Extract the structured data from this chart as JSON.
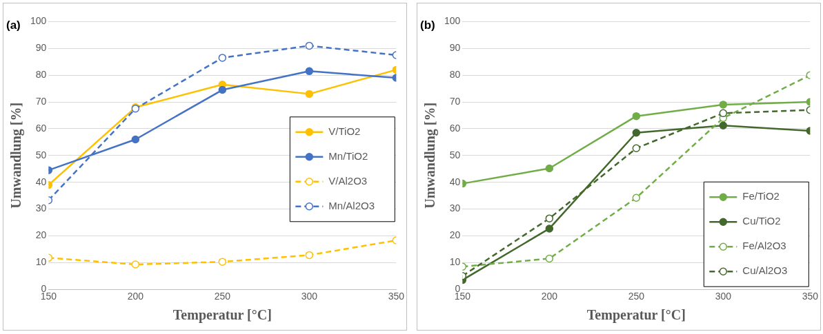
{
  "chart_data": [
    {
      "type": "line",
      "title": "(a)",
      "xlabel": "Temperatur [°C]",
      "ylabel": "Umwandlung [%]",
      "x": [
        150,
        200,
        250,
        300,
        350
      ],
      "xlim": [
        150,
        350
      ],
      "xticks": [
        150,
        200,
        250,
        300,
        350
      ],
      "ylim": [
        0,
        100
      ],
      "yticks": [
        0,
        10,
        20,
        30,
        40,
        50,
        60,
        70,
        80,
        90,
        100
      ],
      "grid": "y",
      "legend": "right",
      "marker": "circle",
      "series": [
        {
          "name": "V/TiO2",
          "color": "#ffc000",
          "line_style": "solid",
          "values": [
            39,
            68,
            76.5,
            73,
            82
          ]
        },
        {
          "name": "Mn/TiO2",
          "color": "#4472c4",
          "line_style": "solid",
          "values": [
            44.5,
            56,
            74.5,
            81.5,
            79
          ]
        },
        {
          "name": "V/Al2O3",
          "color": "#ffc000",
          "line_style": "dashed",
          "values": [
            11.8,
            9.3,
            10.3,
            12.8,
            18.3
          ]
        },
        {
          "name": "Mn/Al2O3",
          "color": "#4472c4",
          "line_style": "dashed",
          "values": [
            33.3,
            67.5,
            86.5,
            91,
            87.5
          ]
        }
      ]
    },
    {
      "type": "line",
      "title": "(b)",
      "xlabel": "Temperatur [°C]",
      "ylabel": "Umwandlung [%]",
      "x": [
        150,
        200,
        250,
        300,
        350
      ],
      "xlim": [
        150,
        350
      ],
      "xticks": [
        150,
        200,
        250,
        300,
        350
      ],
      "ylim": [
        0,
        100
      ],
      "yticks": [
        0,
        10,
        20,
        30,
        40,
        50,
        60,
        70,
        80,
        90,
        100
      ],
      "grid": "y",
      "legend": "bottom right",
      "marker": "circle",
      "series": [
        {
          "name": "Fe/TiO2",
          "color": "#70ad47",
          "line_style": "solid",
          "values": [
            39.5,
            45.2,
            64.7,
            69,
            70
          ]
        },
        {
          "name": "Cu/TiO2",
          "color": "#43682b",
          "line_style": "solid",
          "values": [
            3.5,
            22.7,
            58.5,
            61.2,
            59.2
          ]
        },
        {
          "name": "Fe/Al2O3",
          "color": "#70ad47",
          "line_style": "dashed",
          "values": [
            8.5,
            11.5,
            34.2,
            64,
            80
          ]
        },
        {
          "name": "Cu/Al2O3",
          "color": "#43682b",
          "line_style": "dashed",
          "values": [
            5,
            26.5,
            52.7,
            65.8,
            67
          ]
        }
      ]
    }
  ]
}
